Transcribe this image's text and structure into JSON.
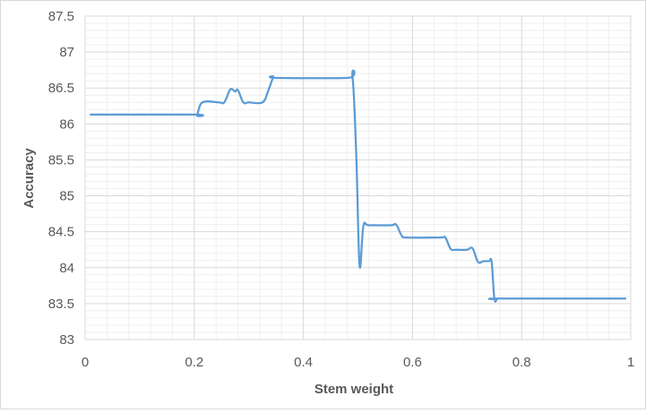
{
  "chart_data": {
    "type": "line",
    "title": "",
    "xlabel": "Stem weight",
    "ylabel": "Accuracy",
    "xlim": [
      0,
      1
    ],
    "ylim": [
      83,
      87.5
    ],
    "xticks": [
      "0",
      "0.2",
      "0.4",
      "0.6",
      "0.8",
      "1"
    ],
    "yticks": [
      "83",
      "83.5",
      "84",
      "84.5",
      "85",
      "85.5",
      "86",
      "86.5",
      "87",
      "87.5"
    ],
    "grid": "major and minor",
    "legend": "none",
    "series": [
      {
        "color": "#5b9bd5",
        "x": [
          0.01,
          0.2,
          0.205,
          0.215,
          0.245,
          0.255,
          0.265,
          0.27,
          0.275,
          0.28,
          0.29,
          0.3,
          0.325,
          0.335,
          0.345,
          0.35,
          0.48,
          0.49,
          0.497,
          0.503,
          0.51,
          0.52,
          0.56,
          0.57,
          0.58,
          0.59,
          0.65,
          0.66,
          0.67,
          0.68,
          0.7,
          0.71,
          0.72,
          0.73,
          0.74,
          0.745,
          0.75,
          0.755,
          0.76,
          0.99
        ],
        "y": [
          86.13,
          86.13,
          86.12,
          86.3,
          86.3,
          86.3,
          86.47,
          86.48,
          86.45,
          86.47,
          86.3,
          86.3,
          86.3,
          86.45,
          86.65,
          86.64,
          86.64,
          86.66,
          85.55,
          84.03,
          84.58,
          84.59,
          84.59,
          84.6,
          84.45,
          84.42,
          84.42,
          84.42,
          84.26,
          84.25,
          84.25,
          84.27,
          84.08,
          84.09,
          84.09,
          84.08,
          83.57,
          83.56,
          83.57,
          83.57
        ]
      }
    ]
  }
}
